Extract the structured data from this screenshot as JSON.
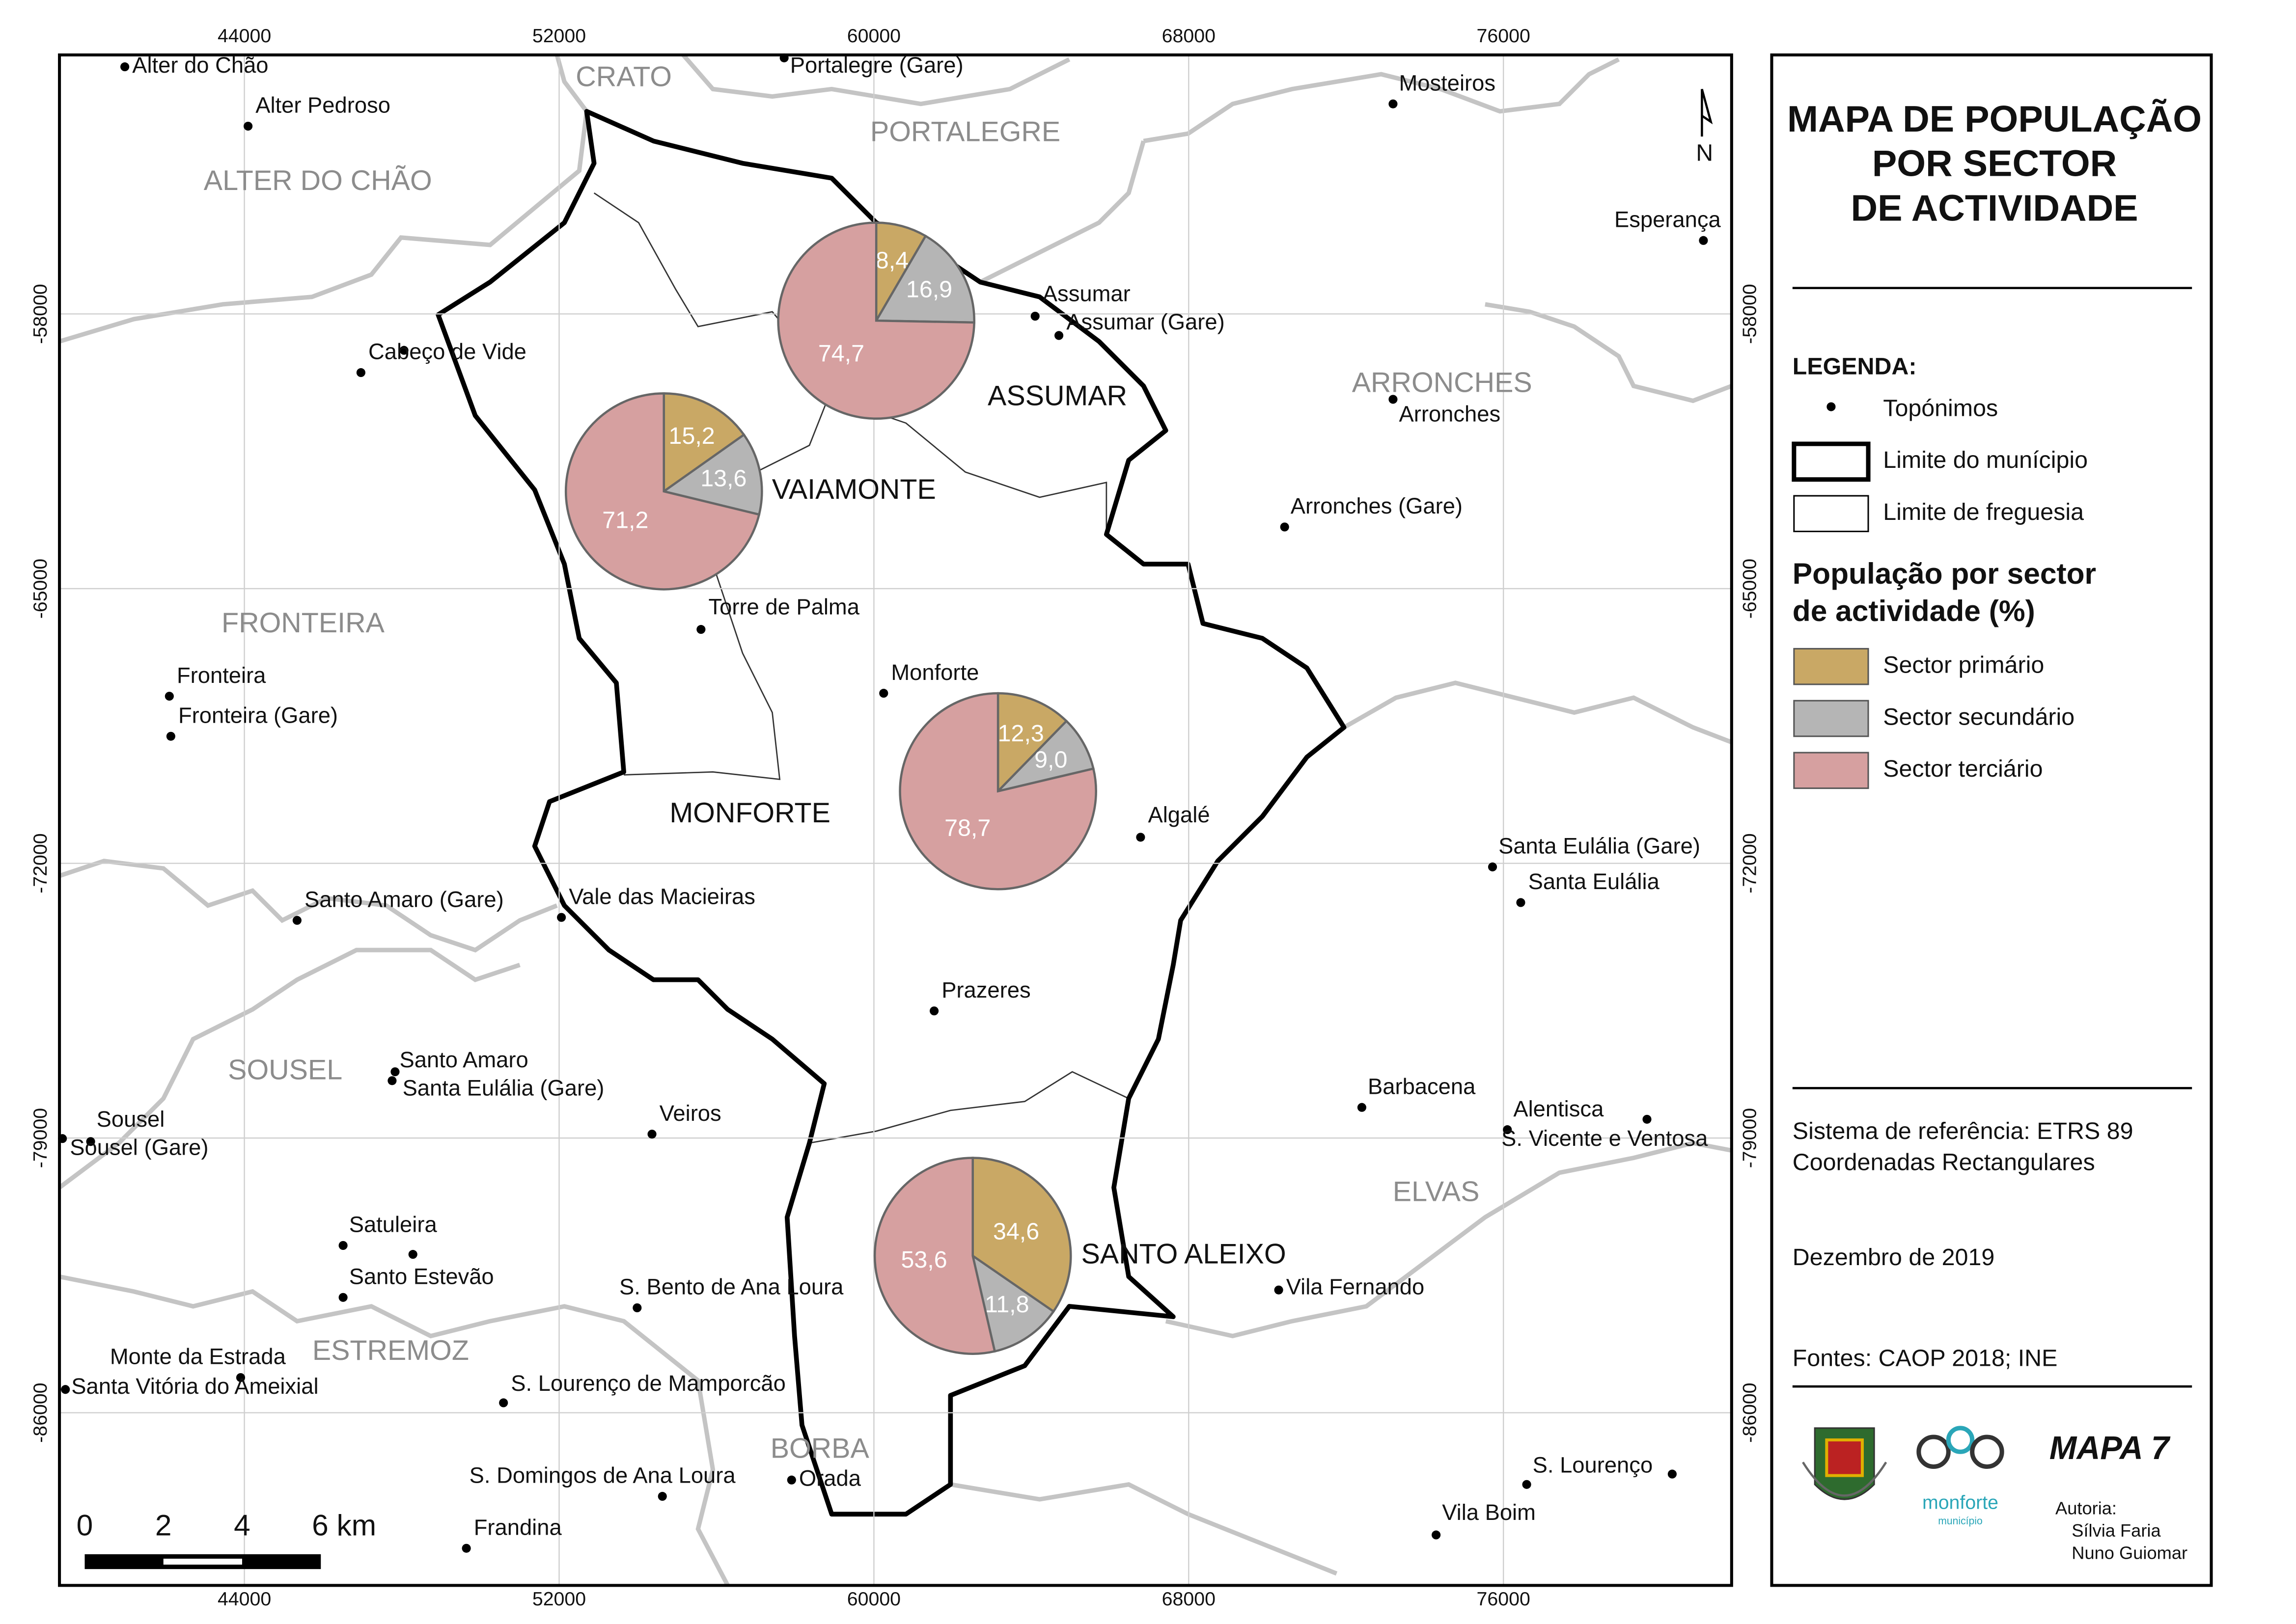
{
  "title": [
    "MAPA DE POPULAÇÃO",
    "POR SECTOR",
    "DE ACTIVIDADE"
  ],
  "legend": {
    "heading": "LEGENDA:",
    "items": [
      "Topónimos",
      "Limite do munícipio",
      "Limite de freguesia"
    ],
    "pie_heading": [
      "População por sector",
      "de actividade (%)"
    ],
    "sectors": [
      {
        "name": "Sector primário",
        "color": "#c9a865"
      },
      {
        "name": "Sector secundário",
        "color": "#b5b5b5"
      },
      {
        "name": "Sector terciário",
        "color": "#d6a0a0"
      }
    ]
  },
  "notes": {
    "reference": [
      "Sistema de referência: ETRS 89",
      "Coordenadas Rectangulares"
    ],
    "date": "Dezembro de 2019",
    "sources": "Fontes: CAOP 2018; INE"
  },
  "map_number": "MAPA 7",
  "authors": {
    "label": "Autoria:",
    "names": [
      "Sílvia Faria",
      "Nuno Guiomar"
    ]
  },
  "logo": {
    "name": "monforte",
    "subtitle": "município"
  },
  "north": "N",
  "grid": {
    "xlim": [
      39300,
      81800
    ],
    "ylim": [
      -90400,
      -51400
    ],
    "xticks": [
      44000,
      52000,
      60000,
      68000,
      76000
    ],
    "yticks": [
      -58000,
      -65000,
      -72000,
      -79000,
      -86000
    ]
  },
  "scale_bar": [
    "0",
    "2",
    "4",
    "6 km"
  ],
  "municipalities": [
    "CRATO",
    "PORTALEGRE",
    "ALTER DO CHÃO",
    "ARRONCHES",
    "FRONTEIRA",
    "SOUSEL",
    "ELVAS",
    "ESTREMOZ",
    "BORBA"
  ],
  "parishes": [
    "ASSUMAR",
    "VAIAMONTE",
    "MONFORTE",
    "SANTO ALEIXO"
  ],
  "toponyms": [
    "Alter do Chão",
    "Alter Pedroso",
    "Portalegre (Gare)",
    "Mosteiros",
    "Esperança",
    "Assumar",
    "Assumar (Gare)",
    "Cabeço de Vide",
    "Arronches",
    "Arronches (Gare)",
    "Torre de Palma",
    "Fronteira",
    "Fronteira (Gare)",
    "Monforte",
    "Algalé",
    "Santa Eulália (Gare)",
    "Santa Eulália",
    "Santo Amaro (Gare)",
    "Vale das Macieiras",
    "Prazeres",
    "Santo Amaro",
    "Santa Eulália (Gare)",
    "Barbacena",
    "Alentisca",
    "S. Vicente e Ventosa",
    "Sousel",
    "Sousel (Gare)",
    "Veiros",
    "Satuleira",
    "Santo Estevão",
    "Vila Fernando",
    "S. Bento de Ana Loura",
    "Monte da Estrada",
    "Santa Vitória do Ameixial",
    "S. Lourenço de Mamporcão",
    "S. Lourenço",
    "S. Domingos de Ana Loura",
    "Orada",
    "Vila Boim",
    "Frandina"
  ],
  "pies": [
    {
      "values": [
        8.4,
        16.9,
        74.7
      ],
      "value_labels": [
        "8,4",
        "16,9",
        "74,7"
      ]
    },
    {
      "values": [
        15.2,
        13.6,
        71.2
      ],
      "value_labels": [
        "15,2",
        "13,6",
        "71,2"
      ]
    },
    {
      "values": [
        12.3,
        9.0,
        78.7
      ],
      "value_labels": [
        "12,3",
        "9,0",
        "78,7"
      ]
    },
    {
      "values": [
        34.6,
        11.8,
        53.6
      ],
      "value_labels": [
        "34,6",
        "11,8",
        "53,6"
      ]
    }
  ]
}
